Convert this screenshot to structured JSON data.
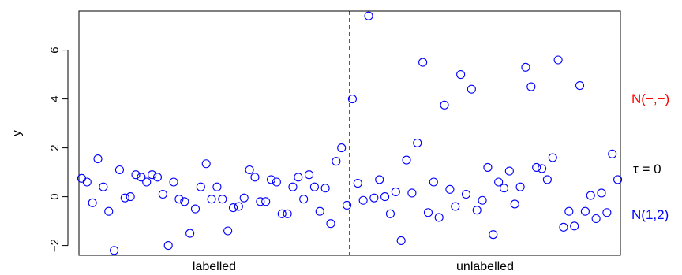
{
  "chart_data": {
    "type": "scatter",
    "ylabel": "y",
    "ylim": [
      -2.4,
      7.6
    ],
    "yticks": [
      -2,
      0,
      2,
      4,
      6
    ],
    "grid": false,
    "marker": "open-circle",
    "point_color": "#0000ff",
    "groups": [
      {
        "label": "labelled",
        "x_range": [
          1,
          50
        ]
      },
      {
        "label": "unlabelled",
        "x_range": [
          51,
          100
        ]
      }
    ],
    "separator": {
      "x": 50.5,
      "style": "dashed"
    },
    "side_labels": [
      {
        "text": "N(−,−)",
        "color": "#ff0000"
      },
      {
        "text": "τ = 0",
        "color": "#000000"
      },
      {
        "text": "N(1,2)",
        "color": "#0000ff"
      }
    ],
    "x": [
      1,
      2,
      3,
      4,
      5,
      6,
      7,
      8,
      9,
      10,
      11,
      12,
      13,
      14,
      15,
      16,
      17,
      18,
      19,
      20,
      21,
      22,
      23,
      24,
      25,
      26,
      27,
      28,
      29,
      30,
      31,
      32,
      33,
      34,
      35,
      36,
      37,
      38,
      39,
      40,
      41,
      42,
      43,
      44,
      45,
      46,
      47,
      48,
      49,
      50,
      51,
      52,
      53,
      54,
      55,
      56,
      57,
      58,
      59,
      60,
      61,
      62,
      63,
      64,
      65,
      66,
      67,
      68,
      69,
      70,
      71,
      72,
      73,
      74,
      75,
      76,
      77,
      78,
      79,
      80,
      81,
      82,
      83,
      84,
      85,
      86,
      87,
      88,
      89,
      90,
      91,
      92,
      93,
      94,
      95,
      96,
      97,
      98,
      99,
      100
    ],
    "y": [
      0.75,
      0.6,
      -0.25,
      1.55,
      0.4,
      -0.6,
      -2.2,
      1.1,
      -0.05,
      0.0,
      0.9,
      0.8,
      0.6,
      0.9,
      0.8,
      0.1,
      -2.0,
      0.6,
      -0.1,
      -0.2,
      -1.5,
      -0.5,
      0.4,
      1.35,
      -0.1,
      0.4,
      -0.1,
      -1.4,
      -0.45,
      -0.4,
      -0.05,
      1.1,
      0.8,
      -0.2,
      -0.2,
      0.7,
      0.6,
      -0.7,
      -0.7,
      0.4,
      0.8,
      -0.1,
      0.9,
      0.4,
      -0.6,
      0.35,
      -1.1,
      1.45,
      2.0,
      -0.35,
      4.0,
      0.55,
      -0.15,
      7.4,
      -0.05,
      0.7,
      0.0,
      -0.7,
      0.2,
      -1.8,
      1.5,
      0.15,
      2.2,
      5.5,
      -0.65,
      0.6,
      -0.85,
      3.75,
      0.3,
      -0.4,
      5.0,
      0.1,
      4.4,
      -0.55,
      -0.15,
      1.2,
      -1.55,
      0.6,
      0.35,
      1.05,
      -0.3,
      0.4,
      5.3,
      4.5,
      1.2,
      1.15,
      0.7,
      1.6,
      5.6,
      -1.25,
      -0.6,
      -1.2,
      4.55,
      -0.6,
      0.05,
      -0.9,
      0.15,
      -0.65,
      1.75,
      0.7
    ]
  }
}
